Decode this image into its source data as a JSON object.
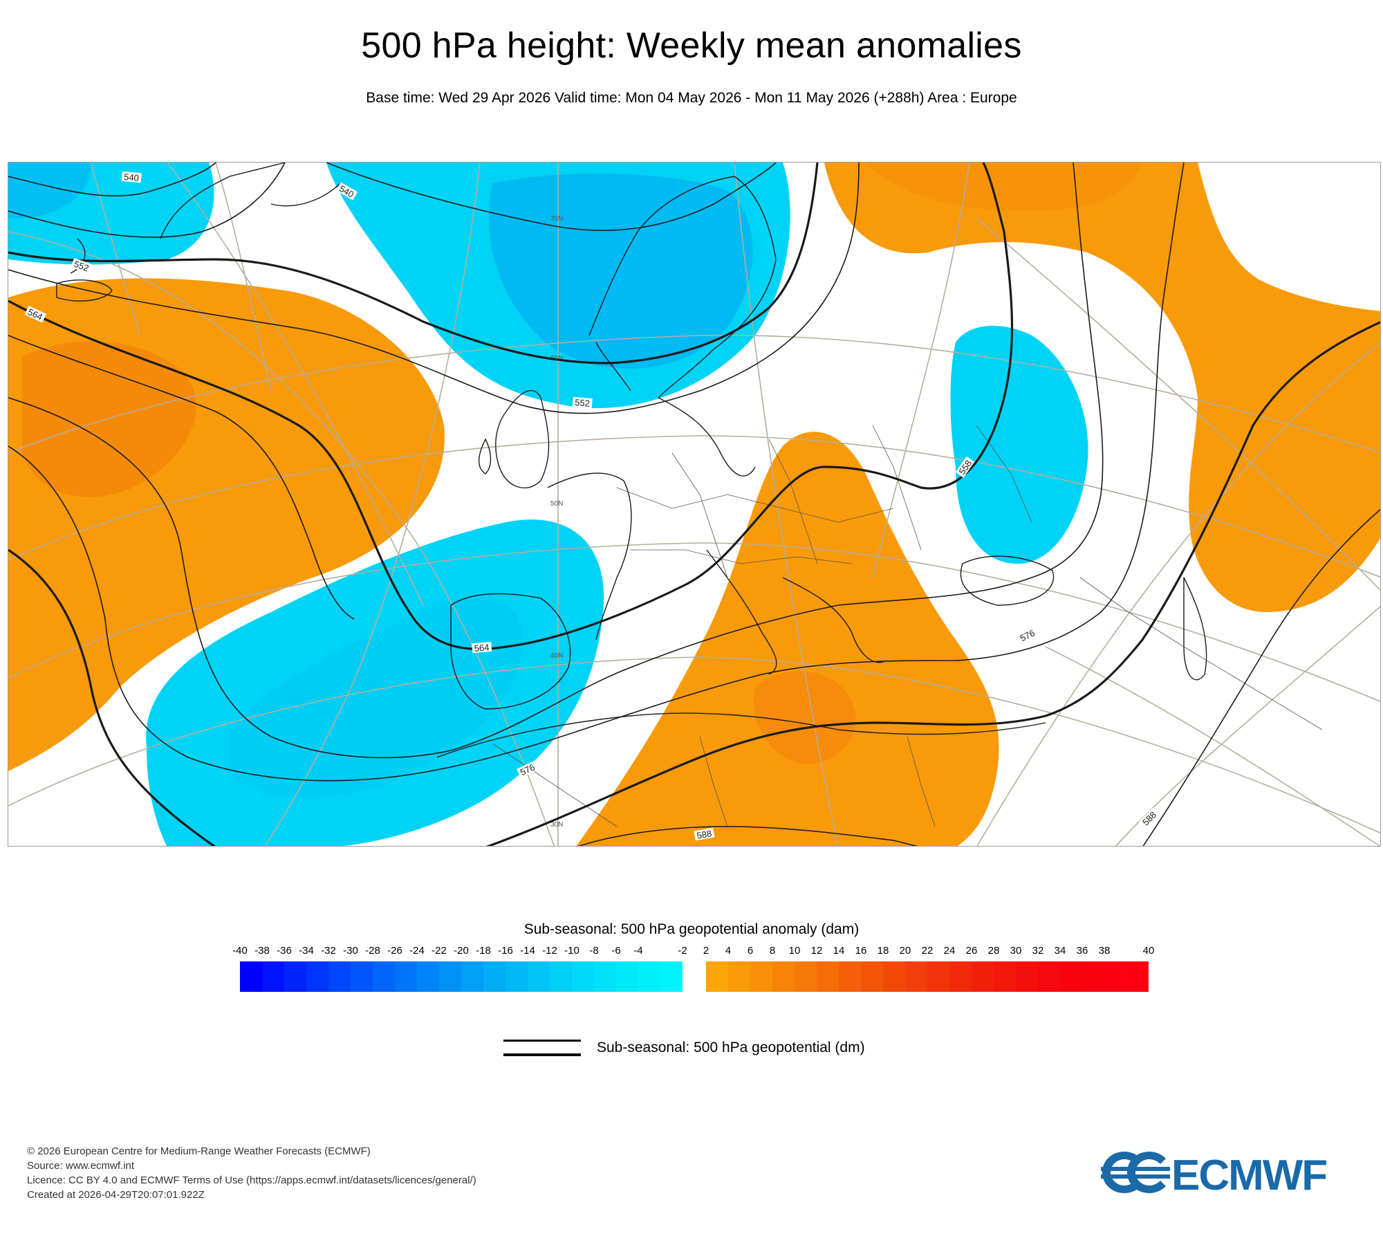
{
  "title": "500 hPa height: Weekly mean anomalies",
  "subtitle": "Base time: Wed 29 Apr 2026 Valid time: Mon 04 May 2026 - Mon 11 May 2026 (+288h) Area : Europe",
  "map": {
    "contour_labels": [
      "540",
      "540",
      "552",
      "564",
      "552",
      "558",
      "564",
      "576",
      "576",
      "588",
      "588"
    ],
    "latitude_labels": [
      "70N",
      "60N",
      "50N",
      "40N",
      "30N"
    ],
    "colors": {
      "positive_anomaly": "#f99a0a",
      "positive_anomaly_strong": "#f27d08",
      "negative_anomaly": "#00d3f5",
      "negative_anomaly_strong": "#00b4f2",
      "graticule": "#b5ad9e",
      "coastline": "#1a1a1a"
    }
  },
  "colorbar": {
    "title": "Sub-seasonal: 500 hPa geopotential anomaly (dam)",
    "tick_labels": [
      "-40",
      "-38",
      "-36",
      "-34",
      "-32",
      "-30",
      "-28",
      "-26",
      "-24",
      "-22",
      "-20",
      "-18",
      "-16",
      "-14",
      "-12",
      "-10",
      "-8",
      "-6",
      "-4",
      "-2",
      "2",
      "4",
      "6",
      "8",
      "10",
      "12",
      "14",
      "16",
      "18",
      "20",
      "22",
      "24",
      "26",
      "28",
      "30",
      "32",
      "34",
      "36",
      "38",
      "40"
    ],
    "negative_colors": [
      "#0000ff",
      "#0012ff",
      "#0024fe",
      "#0035fd",
      "#0046fc",
      "#0056fb",
      "#0066fa",
      "#0075f9",
      "#0084f8",
      "#0092f7",
      "#00a0f6",
      "#00adf6",
      "#00b9f6",
      "#00c4f6",
      "#00cff6",
      "#00d9f7",
      "#00e2f8",
      "#00e9f9",
      "#00eff9",
      "#00f3fa"
    ],
    "positive_colors": [
      "#fca508",
      "#fa9a08",
      "#f98f08",
      "#f78408",
      "#f67808",
      "#f56c08",
      "#f46008",
      "#f35408",
      "#f34908",
      "#f23e08",
      "#f23309",
      "#f2290a",
      "#f2200b",
      "#f3170c",
      "#f40f0d",
      "#f5080e",
      "#f7040f",
      "#f90210",
      "#fb0111",
      "#fd0012"
    ]
  },
  "legend": {
    "label": "Sub-seasonal: 500 hPa geopotential (dm)"
  },
  "footer": {
    "lines": [
      "© 2026 European Centre for Medium-Range Weather Forecasts (ECMWF)",
      "Source: www.ecmwf.int",
      "Licence: CC BY 4.0 and ECMWF Terms of Use (https://apps.ecmwf.int/datasets/licences/general/)",
      "Created at 2026-04-29T20:07:01.922Z"
    ]
  },
  "logo": {
    "text": "ECMWF",
    "color": "#1a6aa8"
  }
}
